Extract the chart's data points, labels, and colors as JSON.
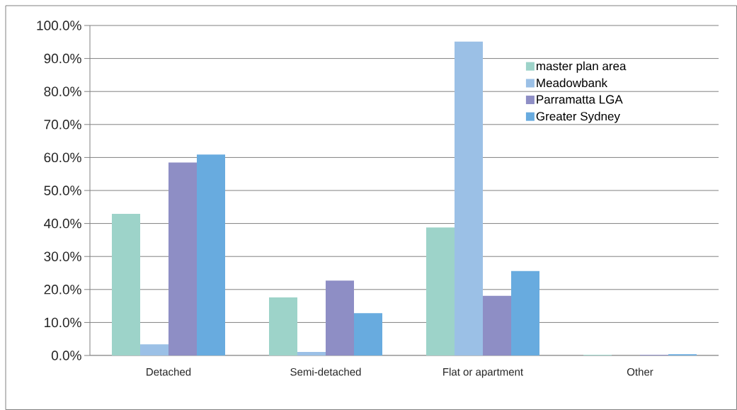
{
  "chart_data": {
    "type": "bar",
    "categories": [
      "Detached",
      "Semi-detached",
      "Flat or apartment",
      "Other"
    ],
    "series": [
      {
        "name": "master plan area",
        "color": "#9dd3c9",
        "values": [
          42.9,
          17.6,
          38.8,
          0.2
        ]
      },
      {
        "name": "Meadowbank",
        "color": "#9bc0e6",
        "values": [
          3.4,
          1.1,
          95.1,
          0
        ]
      },
      {
        "name": "Parramatta LGA",
        "color": "#8e8ec5",
        "values": [
          58.5,
          22.7,
          18.1,
          0.2
        ]
      },
      {
        "name": "Greater Sydney",
        "color": "#68abdf",
        "values": [
          60.9,
          12.8,
          25.6,
          0.4
        ]
      }
    ],
    "ylim": [
      0,
      100
    ],
    "yticks": [
      {
        "value": 0,
        "label": "0.0%"
      },
      {
        "value": 10,
        "label": "10.0%"
      },
      {
        "value": 20,
        "label": "20.0%"
      },
      {
        "value": 30,
        "label": "30.0%"
      },
      {
        "value": 40,
        "label": "40.0%"
      },
      {
        "value": 50,
        "label": "50.0%"
      },
      {
        "value": 60,
        "label": "60.0%"
      },
      {
        "value": 70,
        "label": "70.0%"
      },
      {
        "value": 80,
        "label": "80.0%"
      },
      {
        "value": 90,
        "label": "90.0%"
      },
      {
        "value": 100,
        "label": "100.0%"
      }
    ],
    "grid": "y",
    "legend": "top right"
  }
}
